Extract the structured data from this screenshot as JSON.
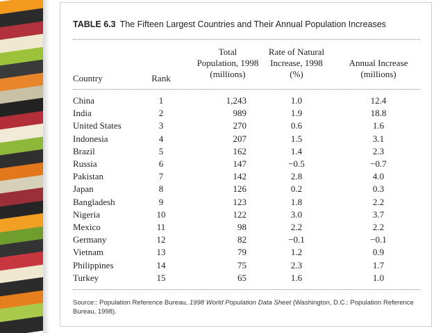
{
  "decor": {
    "stripe_colors": [
      "#f39a1e",
      "#2b2b2b",
      "#b1323c",
      "#efe9d2",
      "#9cc23a",
      "#3a3a3a",
      "#e8852a",
      "#c9c1a6",
      "#222222",
      "#b22f3a",
      "#f0ead6",
      "#8db83a",
      "#2f2f2f",
      "#e2781b",
      "#d7d0b8",
      "#9b2f39",
      "#252525",
      "#f2a024",
      "#6f9e2f",
      "#333333",
      "#c8363f",
      "#efe7cf",
      "#2b2b2b",
      "#e67f1d",
      "#a8c94a",
      "#2a2a2a"
    ]
  },
  "table": {
    "label": "TABLE 6.3",
    "title": "The Fifteen Largest Countries and Their Annual Population Increases",
    "headers": {
      "country": "Country",
      "rank": "Rank",
      "population": [
        "Total",
        "Population, 1998",
        "(millions)"
      ],
      "rate": [
        "Rate of Natural",
        "Increase, 1998",
        "(%)"
      ],
      "increase": [
        "Annual Increase",
        "(millions)"
      ]
    },
    "rows": [
      {
        "country": "China",
        "rank": "1",
        "population": "1,243",
        "rate": "1.0",
        "increase": "12.4"
      },
      {
        "country": "India",
        "rank": "2",
        "population": "989",
        "rate": "1.9",
        "increase": "18.8"
      },
      {
        "country": "United States",
        "rank": "3",
        "population": "270",
        "rate": "0.6",
        "increase": "1.6"
      },
      {
        "country": "Indonesia",
        "rank": "4",
        "population": "207",
        "rate": "1.5",
        "increase": "3.1"
      },
      {
        "country": "Brazil",
        "rank": "5",
        "population": "162",
        "rate": "1.4",
        "increase": "2.3"
      },
      {
        "country": "Russia",
        "rank": "6",
        "population": "147",
        "rate": "−0.5",
        "increase": "−0.7"
      },
      {
        "country": "Pakistan",
        "rank": "7",
        "population": "142",
        "rate": "2.8",
        "increase": "4.0"
      },
      {
        "country": "Japan",
        "rank": "8",
        "population": "126",
        "rate": "0.2",
        "increase": "0.3"
      },
      {
        "country": "Bangladesh",
        "rank": "9",
        "population": "123",
        "rate": "1.8",
        "increase": "2.2"
      },
      {
        "country": "Nigeria",
        "rank": "10",
        "population": "122",
        "rate": "3.0",
        "increase": "3.7"
      },
      {
        "country": "Mexico",
        "rank": "11",
        "population": "98",
        "rate": "2.2",
        "increase": "2.2"
      },
      {
        "country": "Germany",
        "rank": "12",
        "population": "82",
        "rate": "−0.1",
        "increase": "−0.1"
      },
      {
        "country": "Vietnam",
        "rank": "13",
        "population": "79",
        "rate": "1.2",
        "increase": "0.9"
      },
      {
        "country": "Philippines",
        "rank": "14",
        "population": "75",
        "rate": "2.3",
        "increase": "1.7"
      },
      {
        "country": "Turkey",
        "rank": "15",
        "population": "65",
        "rate": "1.6",
        "increase": "1.0"
      }
    ],
    "source": {
      "prefix": "Source:: Population Reference Bureau, ",
      "work": "1998 World Population Data Sheet",
      "suffix": " (Washington, D.C.: Population Reference Bureau, 1998)."
    }
  }
}
